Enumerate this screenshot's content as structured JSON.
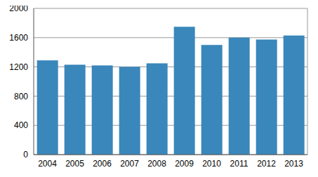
{
  "chart_data": {
    "type": "bar",
    "categories": [
      "2004",
      "2005",
      "2006",
      "2007",
      "2008",
      "2009",
      "2010",
      "2011",
      "2012",
      "2013"
    ],
    "values": [
      1290,
      1230,
      1220,
      1200,
      1250,
      1750,
      1500,
      1600,
      1575,
      1630
    ],
    "color": "#3a87bb",
    "ylim": [
      0,
      2000
    ],
    "yticks": [
      0,
      400,
      800,
      1200,
      1600,
      2000
    ],
    "grid": true
  }
}
